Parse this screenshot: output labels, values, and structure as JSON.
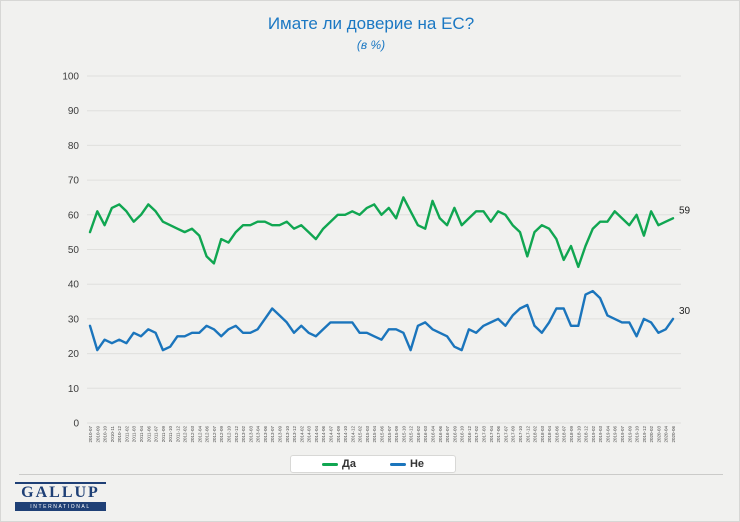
{
  "title": "Имате ли доверие на ЕС?",
  "subtitle": "(в %)",
  "logo": {
    "name": "GALLUP",
    "sub": "INTERNATIONAL"
  },
  "colors": {
    "title_blue": "#1b78c3",
    "background": "#f1f1ef",
    "gridline": "#e0e0dd",
    "axis_text": "#3c3c3c",
    "logo_navy": "#1f4076"
  },
  "chart_data": {
    "type": "line",
    "title": "Имате ли доверие на ЕС?",
    "subtitle": "(в %)",
    "ylim": [
      0,
      100
    ],
    "y_ticks": [
      0,
      10,
      20,
      30,
      40,
      50,
      60,
      70,
      80,
      90,
      100
    ],
    "grid": true,
    "legend_position": "bottom",
    "categories": [
      "2010-07",
      "2010-09",
      "2010-10",
      "2010-11",
      "2010-12",
      "2011-02",
      "2011-03",
      "2011-04",
      "2011-06",
      "2011-07",
      "2011-09",
      "2011-10",
      "2011-12",
      "2012-02",
      "2012-03",
      "2012-04",
      "2012-06",
      "2012-07",
      "2012-09",
      "2012-10",
      "2012-12",
      "2013-02",
      "2013-03",
      "2013-04",
      "2013-06",
      "2013-07",
      "2013-09",
      "2013-10",
      "2013-12",
      "2014-02",
      "2014-03",
      "2014-04",
      "2014-06",
      "2014-07",
      "2014-09",
      "2014-10",
      "2014-12",
      "2015-02",
      "2015-03",
      "2015-04",
      "2015-06",
      "2015-07",
      "2015-09",
      "2015-10",
      "2015-12",
      "2016-02",
      "2016-03",
      "2016-04",
      "2016-06",
      "2016-07",
      "2016-09",
      "2016-10",
      "2016-12",
      "2017-02",
      "2017-03",
      "2017-04",
      "2017-06",
      "2017-07",
      "2017-09",
      "2017-10",
      "2017-12",
      "2018-02",
      "2018-03",
      "2018-04",
      "2018-06",
      "2018-07",
      "2018-09",
      "2018-10",
      "2018-12",
      "2019-02",
      "2019-03",
      "2019-04",
      "2019-06",
      "2019-07",
      "2019-09",
      "2019-10",
      "2019-12",
      "2020-02",
      "2020-03",
      "2020-04",
      "2020-06"
    ],
    "series": [
      {
        "id": "da",
        "name": "Да",
        "color": "#10a651",
        "end_label": "59",
        "values": [
          55,
          61,
          57,
          62,
          63,
          61,
          58,
          60,
          63,
          61,
          58,
          57,
          56,
          55,
          56,
          54,
          48,
          46,
          53,
          52,
          55,
          57,
          57,
          58,
          58,
          57,
          57,
          58,
          56,
          57,
          55,
          53,
          56,
          58,
          60,
          60,
          61,
          60,
          62,
          63,
          60,
          62,
          59,
          65,
          61,
          57,
          56,
          64,
          59,
          57,
          62,
          57,
          59,
          61,
          61,
          58,
          61,
          60,
          57,
          55,
          48,
          55,
          57,
          56,
          53,
          47,
          51,
          45,
          51,
          56,
          58,
          58,
          61,
          59,
          57,
          60,
          54,
          61,
          57,
          58,
          59
        ]
      },
      {
        "id": "ne",
        "name": "Не",
        "color": "#1b75bc",
        "end_label": "30",
        "values": [
          28,
          21,
          24,
          23,
          24,
          23,
          26,
          25,
          27,
          26,
          21,
          22,
          25,
          25,
          26,
          26,
          28,
          27,
          25,
          27,
          28,
          26,
          26,
          27,
          30,
          33,
          31,
          29,
          26,
          28,
          26,
          25,
          27,
          29,
          29,
          29,
          29,
          26,
          26,
          25,
          24,
          27,
          27,
          26,
          21,
          28,
          29,
          27,
          26,
          25,
          22,
          21,
          27,
          26,
          28,
          29,
          30,
          28,
          31,
          33,
          34,
          28,
          26,
          29,
          33,
          33,
          28,
          28,
          37,
          38,
          36,
          31,
          30,
          29,
          29,
          25,
          30,
          29,
          26,
          27,
          30
        ]
      }
    ]
  }
}
